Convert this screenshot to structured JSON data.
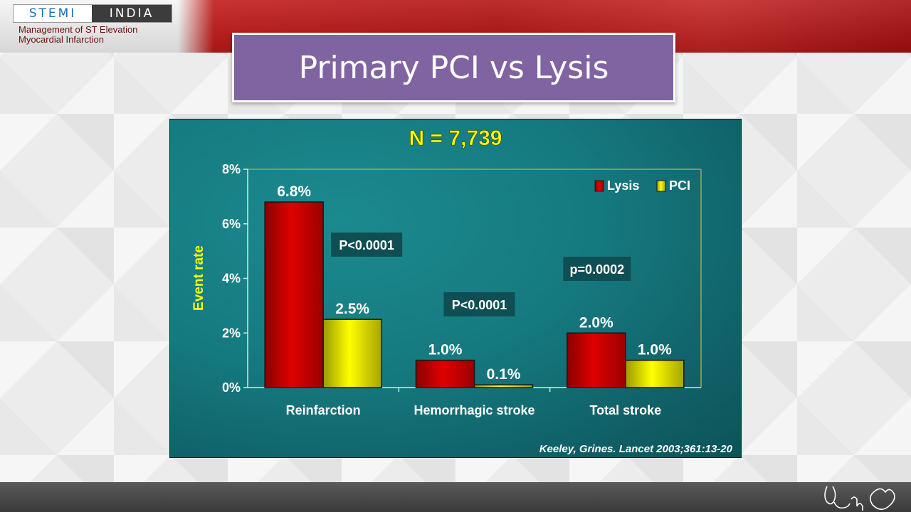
{
  "header": {
    "logo_left": "STEMI",
    "logo_right": "INDIA",
    "tagline_line1": "Management of ST Elevation",
    "tagline_line2": "Myocardial Infarction"
  },
  "slide": {
    "title": "Primary PCI vs Lysis"
  },
  "colors": {
    "lysis": "#e00000",
    "pci": "#ffff00",
    "accent_yellow": "#ffff00",
    "title_bg": "#8064a2"
  },
  "chart_data": {
    "type": "bar",
    "title": "N = 7,739",
    "ylabel": "Event rate",
    "xlabel": "",
    "ylim": [
      0,
      8
    ],
    "yticks": [
      "0%",
      "2%",
      "4%",
      "6%",
      "8%"
    ],
    "categories": [
      "Reinfarction",
      "Hemorrhagic stroke",
      "Total stroke"
    ],
    "series": [
      {
        "name": "Lysis",
        "values": [
          6.8,
          1.0,
          2.0
        ],
        "labels": [
          "6.8%",
          "1.0%",
          "2.0%"
        ]
      },
      {
        "name": "PCI",
        "values": [
          2.5,
          0.1,
          1.0
        ],
        "labels": [
          "2.5%",
          "0.1%",
          "1.0%"
        ]
      }
    ],
    "pvalues": [
      "P<0.0001",
      "P<0.0001",
      "p=0.0002"
    ],
    "legend_position": "top-right",
    "grid": false,
    "source": "Keeley, Grines. Lancet 2003;361:13-20"
  }
}
